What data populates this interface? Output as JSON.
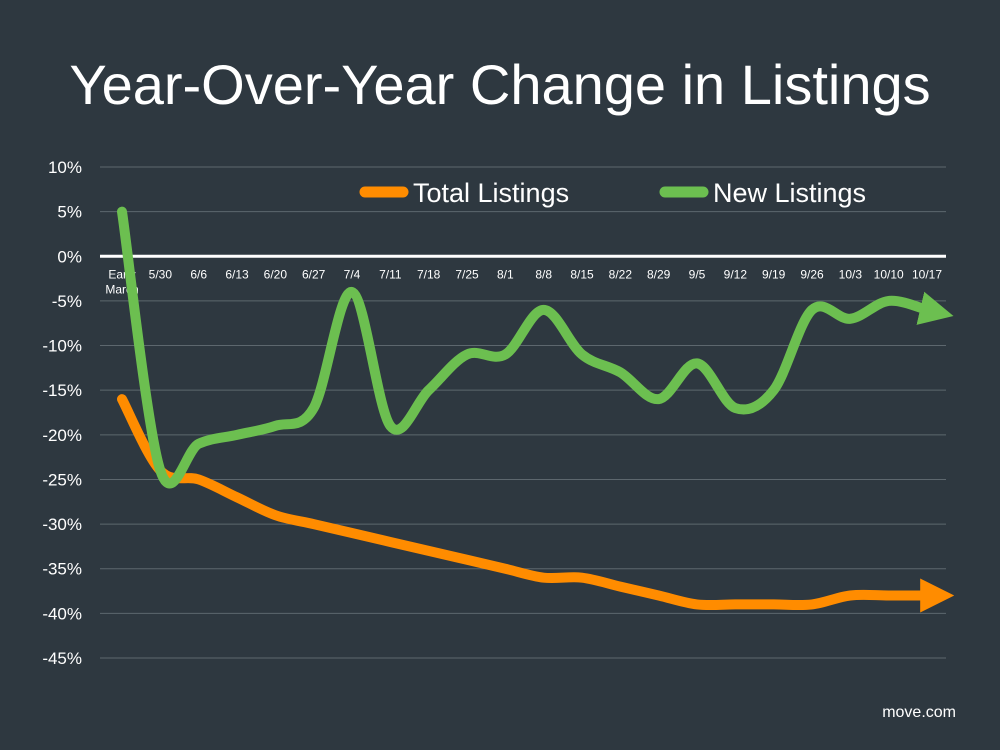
{
  "chart_data": {
    "type": "line",
    "title": "Year-Over-Year Change in Listings",
    "categories": [
      "Early March",
      "5/30",
      "6/6",
      "6/13",
      "6/20",
      "6/27",
      "7/4",
      "7/11",
      "7/18",
      "7/25",
      "8/1",
      "8/8",
      "8/15",
      "8/22",
      "8/29",
      "9/5",
      "9/12",
      "9/19",
      "9/26",
      "10/3",
      "10/10",
      "10/17"
    ],
    "series": [
      {
        "name": "Total Listings",
        "color": "#ff8c00",
        "values": [
          -16,
          -24,
          -25,
          -27,
          -29,
          -30,
          -31,
          -32,
          -33,
          -34,
          -35,
          -36,
          -36,
          -37,
          -38,
          -39,
          -39,
          -39,
          -39,
          -38,
          -38,
          -38
        ]
      },
      {
        "name": "New Listings",
        "color": "#6cbf50",
        "values": [
          5,
          -24,
          -21,
          -20,
          -19,
          -17,
          -4,
          -19,
          -15,
          -11,
          -11,
          -6,
          -11,
          -13,
          -16,
          -12,
          -17,
          -15,
          -6,
          -7,
          -5,
          -6
        ]
      }
    ],
    "ylim": [
      -45,
      10
    ],
    "yticks": [
      10,
      5,
      0,
      -5,
      -10,
      -15,
      -20,
      -25,
      -30,
      -35,
      -40,
      -45
    ],
    "ytick_labels": [
      "10%",
      "5%",
      "0%",
      "-5%",
      "-10%",
      "-15%",
      "-20%",
      "-25%",
      "-30%",
      "-35%",
      "-40%",
      "-45%"
    ],
    "xlabel": "",
    "ylabel": "",
    "grid": true,
    "legend_position": "top-right",
    "background": "#2e3840"
  },
  "source": "move.com"
}
